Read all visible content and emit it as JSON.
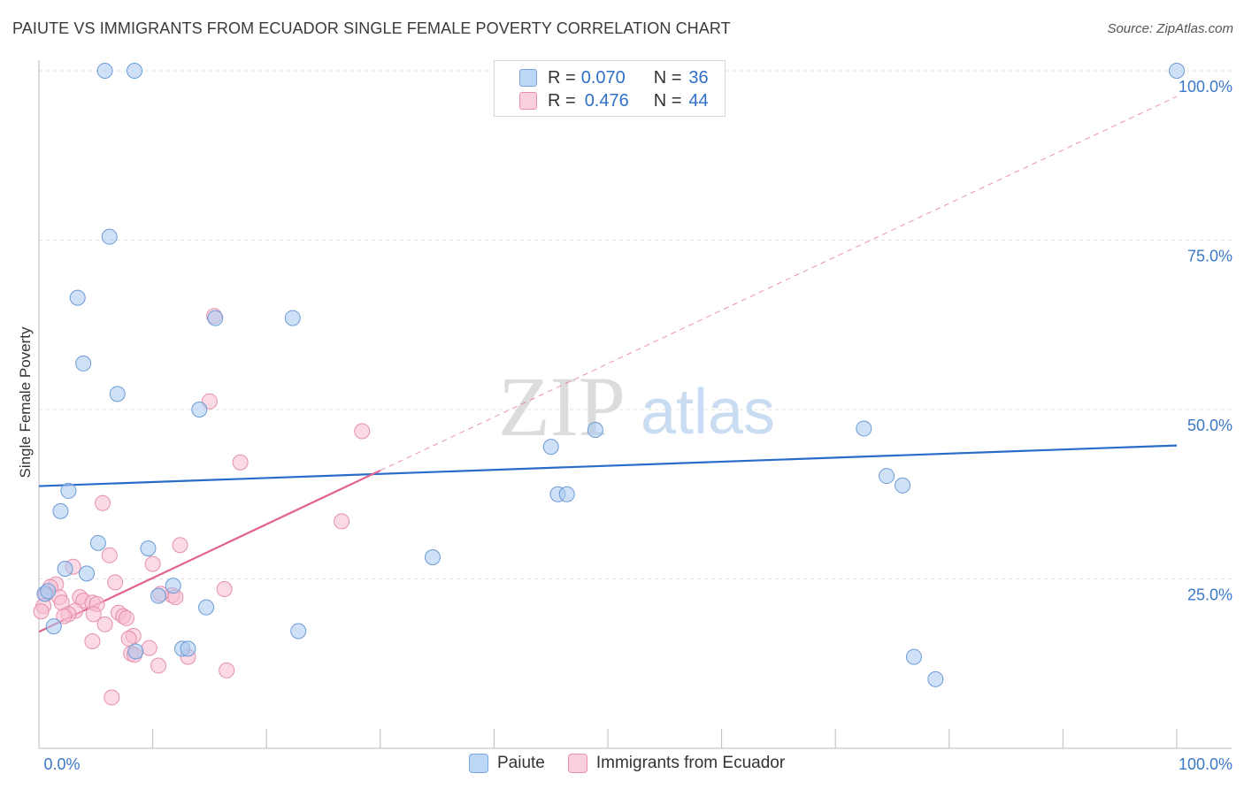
{
  "title": "PAIUTE VS IMMIGRANTS FROM ECUADOR SINGLE FEMALE POVERTY CORRELATION CHART",
  "source": "Source: ZipAtlas.com",
  "watermark": {
    "zip": "ZIP",
    "atlas": "atlas"
  },
  "legend_stats": [
    {
      "r_label": "R =",
      "r_value": "0.070",
      "n_label": "N =",
      "n_value": "36",
      "color": "#a8c8f0",
      "border": "#7aa6dc"
    },
    {
      "r_label": "R =",
      "r_value": "0.476",
      "n_label": "N =",
      "n_value": "44",
      "color": "#f8bcd0",
      "border": "#e890ae"
    }
  ],
  "legend_series": [
    {
      "label": "Paiute",
      "color": "#bcd6f6",
      "border": "#7aa6dc"
    },
    {
      "label": "Immigrants from Ecuador",
      "color": "#fbd0de",
      "border": "#e890ae"
    }
  ],
  "chart_data": {
    "type": "scatter",
    "title": "PAIUTE VS IMMIGRANTS FROM ECUADOR SINGLE FEMALE POVERTY CORRELATION CHART",
    "xlabel": "",
    "ylabel": "Single Female Poverty",
    "xlim": [
      0,
      100
    ],
    "ylim": [
      0,
      100
    ],
    "x_tick_labels": [
      "0.0%",
      "100.0%"
    ],
    "y_tick_labels": [
      {
        "value": 25,
        "label": "25.0%"
      },
      {
        "value": 50,
        "label": "50.0%"
      },
      {
        "value": 75,
        "label": "75.0%"
      },
      {
        "value": 100,
        "label": "100.0%"
      }
    ],
    "grid": true,
    "series": [
      {
        "name": "Paiute",
        "color": "#a8c8f0",
        "stroke": "#6c9bd6",
        "trend": {
          "x0": 0,
          "y0": 38.7,
          "x1": 100,
          "y1": 44.7,
          "color": "#2a6ccc",
          "dashed_extension": false
        },
        "points": [
          [
            5.8,
            100
          ],
          [
            8.4,
            100
          ],
          [
            100,
            100
          ],
          [
            6.2,
            75.5
          ],
          [
            3.4,
            66.5
          ],
          [
            15.5,
            63.5
          ],
          [
            22.3,
            63.5
          ],
          [
            3.9,
            56.8
          ],
          [
            6.9,
            52.3
          ],
          [
            14.1,
            50.0
          ],
          [
            48.9,
            47.0
          ],
          [
            45.0,
            44.5
          ],
          [
            72.5,
            47.2
          ],
          [
            2.6,
            38.0
          ],
          [
            1.9,
            35.0
          ],
          [
            74.5,
            40.2
          ],
          [
            75.9,
            38.8
          ],
          [
            45.6,
            37.5
          ],
          [
            46.4,
            37.5
          ],
          [
            5.2,
            30.3
          ],
          [
            9.6,
            29.5
          ],
          [
            34.6,
            28.2
          ],
          [
            2.3,
            26.5
          ],
          [
            4.2,
            25.8
          ],
          [
            11.8,
            24.0
          ],
          [
            0.5,
            22.8
          ],
          [
            0.8,
            23.2
          ],
          [
            10.5,
            22.5
          ],
          [
            14.7,
            20.8
          ],
          [
            1.3,
            18.0
          ],
          [
            22.8,
            17.3
          ],
          [
            12.6,
            14.7
          ],
          [
            13.1,
            14.7
          ],
          [
            8.5,
            14.3
          ],
          [
            76.9,
            13.5
          ],
          [
            78.8,
            10.2
          ]
        ]
      },
      {
        "name": "Immigrants from Ecuador",
        "color": "#f8bcd0",
        "stroke": "#e590ac",
        "trend": {
          "x0": 0,
          "y0": 17.2,
          "x1": 30,
          "y1": 41.0,
          "x_ext": 100,
          "y_ext": 96.2,
          "color": "#e2648e",
          "dashed_extension": true
        },
        "points": [
          [
            15.4,
            63.8
          ],
          [
            15.0,
            51.2
          ],
          [
            28.4,
            46.8
          ],
          [
            17.7,
            42.2
          ],
          [
            5.6,
            36.2
          ],
          [
            26.6,
            33.5
          ],
          [
            12.4,
            30.0
          ],
          [
            6.2,
            28.5
          ],
          [
            10.0,
            27.2
          ],
          [
            3.0,
            26.8
          ],
          [
            1.5,
            24.2
          ],
          [
            1.0,
            23.8
          ],
          [
            6.7,
            24.5
          ],
          [
            16.3,
            23.5
          ],
          [
            0.6,
            22.8
          ],
          [
            1.8,
            22.3
          ],
          [
            3.6,
            22.3
          ],
          [
            3.9,
            21.8
          ],
          [
            2.0,
            21.5
          ],
          [
            4.7,
            21.5
          ],
          [
            11.7,
            22.6
          ],
          [
            10.7,
            22.8
          ],
          [
            12.0,
            22.3
          ],
          [
            5.1,
            21.3
          ],
          [
            0.4,
            21.0
          ],
          [
            0.2,
            20.2
          ],
          [
            3.2,
            20.3
          ],
          [
            2.6,
            19.8
          ],
          [
            7.0,
            20.0
          ],
          [
            2.2,
            19.5
          ],
          [
            4.8,
            19.8
          ],
          [
            7.4,
            19.5
          ],
          [
            7.7,
            19.2
          ],
          [
            5.8,
            18.3
          ],
          [
            8.3,
            16.6
          ],
          [
            7.9,
            16.2
          ],
          [
            4.7,
            15.8
          ],
          [
            9.7,
            14.8
          ],
          [
            8.1,
            14.0
          ],
          [
            8.4,
            13.8
          ],
          [
            13.1,
            13.5
          ],
          [
            10.5,
            12.2
          ],
          [
            16.5,
            11.5
          ],
          [
            6.4,
            7.5
          ]
        ]
      }
    ]
  }
}
